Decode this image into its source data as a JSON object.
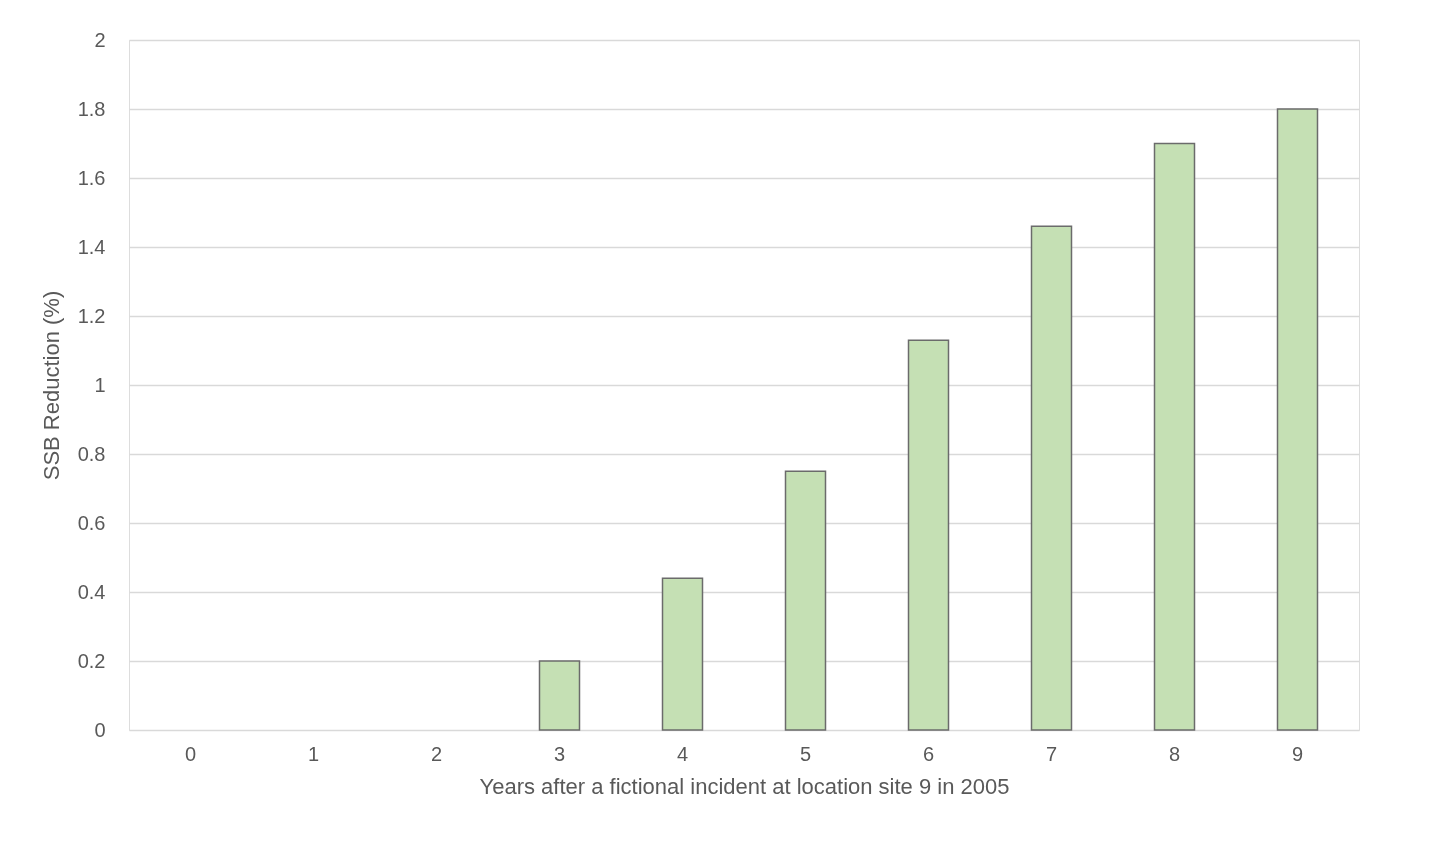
{
  "chart_data": {
    "type": "bar",
    "xlabel": "Years after a fictional incident at location site 9 in 2005",
    "ylabel": "SSB Reduction (%)",
    "categories": [
      "0",
      "1",
      "2",
      "3",
      "4",
      "5",
      "6",
      "7",
      "8",
      "9"
    ],
    "values": [
      0,
      0,
      0,
      0.2,
      0.44,
      0.75,
      1.13,
      1.46,
      1.7,
      1.8
    ],
    "color": "#c5e0b4",
    "ylim": [
      0,
      2
    ],
    "yticks": [
      0,
      0.2,
      0.4,
      0.6,
      0.8,
      1,
      1.2,
      1.4,
      1.6,
      1.8,
      2
    ],
    "grid": "y"
  }
}
